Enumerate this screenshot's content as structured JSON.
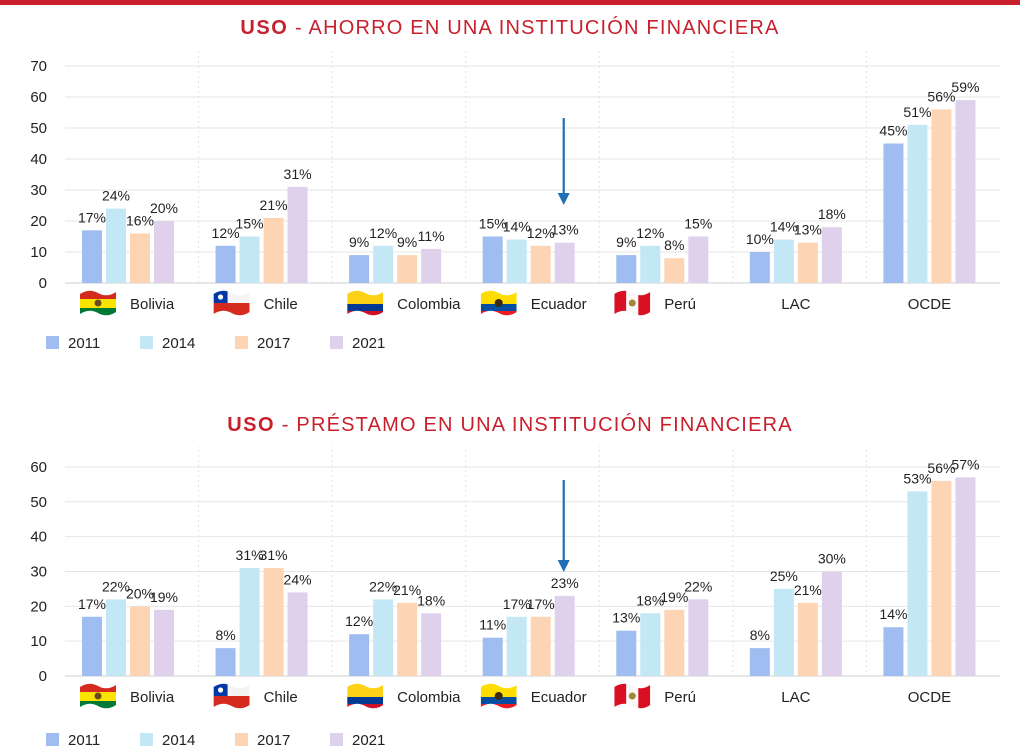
{
  "charts": [
    {
      "title_bold": "USO",
      "title_rest": " - AHORRO EN UNA INSTITUCIÓN FINANCIERA"
    },
    {
      "title_bold": "USO",
      "title_rest": " - PRÉSTAMO EN UNA INSTITUCIÓN FINANCIERA"
    }
  ],
  "colors": {
    "title": "#c8202c",
    "series": [
      "#9fbdf0",
      "#c3e7f5",
      "#fdd5b4",
      "#dfd0ec"
    ],
    "arrow": "#1f6fb5",
    "grid": "#e6e6e6"
  },
  "flags": [
    "bolivia-flag",
    "chile-flag",
    "colombia-flag",
    "ecuador-flag",
    "peru-flag",
    null,
    null
  ],
  "chart_data": [
    {
      "type": "bar",
      "title": "USO - AHORRO EN UNA INSTITUCIÓN FINANCIERA",
      "categories": [
        "Bolivia",
        "Chile",
        "Colombia",
        "Ecuador",
        "Perú",
        "LAC",
        "OCDE"
      ],
      "series": [
        {
          "name": "2011",
          "values": [
            17,
            12,
            9,
            15,
            9,
            10,
            45
          ],
          "labels": [
            "17%",
            "12%",
            "9%",
            "15%",
            "9%",
            "10%",
            "45%"
          ]
        },
        {
          "name": "2014",
          "values": [
            24,
            15,
            12,
            14,
            12,
            14,
            51
          ],
          "labels": [
            "24%",
            "15%",
            "12%",
            "14%",
            "12%",
            "14%",
            "51%"
          ]
        },
        {
          "name": "2017",
          "values": [
            16,
            21,
            9,
            12,
            8,
            13,
            56
          ],
          "labels": [
            "16%",
            "21%",
            "9%",
            "12%",
            "8%",
            "13%",
            "56%"
          ]
        },
        {
          "name": "2021",
          "values": [
            20,
            31,
            11,
            13,
            15,
            18,
            59
          ],
          "labels": [
            "20%",
            "31%",
            "11%",
            "13%",
            "15%",
            "18%",
            "59%"
          ]
        }
      ],
      "yticks": [
        0,
        10,
        20,
        30,
        40,
        50,
        60,
        70
      ],
      "ylim": [
        0,
        70
      ],
      "grid": true,
      "legend": "bottom-left",
      "annotation": "arrow pointing to Ecuador 2021"
    },
    {
      "type": "bar",
      "title": "USO - PRÉSTAMO EN UNA INSTITUCIÓN FINANCIERA",
      "categories": [
        "Bolivia",
        "Chile",
        "Colombia",
        "Ecuador",
        "Perú",
        "LAC",
        "OCDE"
      ],
      "series": [
        {
          "name": "2011",
          "values": [
            17,
            8,
            12,
            11,
            13,
            8,
            14
          ],
          "labels": [
            "17%",
            "8%",
            "12%",
            "11%",
            "13%",
            "8%",
            "14%"
          ]
        },
        {
          "name": "2014",
          "values": [
            22,
            31,
            22,
            17,
            18,
            25,
            53
          ],
          "labels": [
            "22%",
            "31%",
            "22%",
            "17%",
            "18%",
            "25%",
            "53%"
          ]
        },
        {
          "name": "2017",
          "values": [
            20,
            31,
            21,
            17,
            19,
            21,
            56
          ],
          "labels": [
            "20%",
            "31%",
            "21%",
            "17%",
            "19%",
            "21%",
            "56%"
          ]
        },
        {
          "name": "2021",
          "values": [
            19,
            24,
            18,
            23,
            22,
            30,
            57
          ],
          "labels": [
            "19%",
            "24%",
            "18%",
            "23%",
            "22%",
            "30%",
            "57%"
          ]
        }
      ],
      "yticks": [
        0,
        10,
        20,
        30,
        40,
        50,
        60
      ],
      "ylim": [
        0,
        62
      ],
      "grid": true,
      "legend": "bottom-left",
      "annotation": "arrow pointing to Ecuador 2021"
    }
  ]
}
